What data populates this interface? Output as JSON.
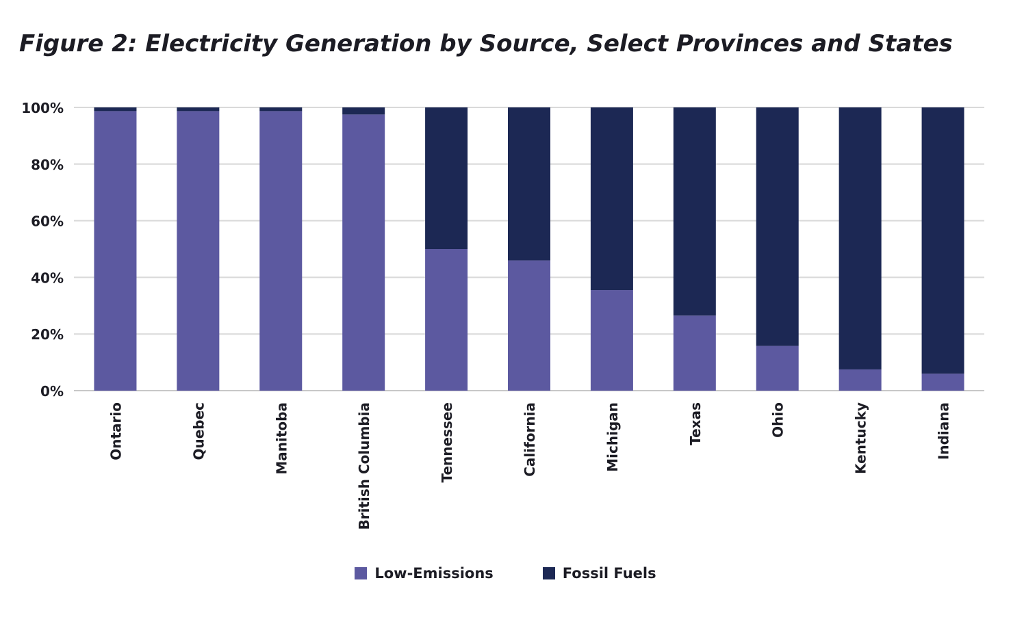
{
  "chart_data": {
    "type": "bar",
    "stacked": true,
    "title": "Figure 2: Electricity Generation by Source, Select Provinces and States",
    "xlabel": "",
    "ylabel": "",
    "ylim": [
      0,
      100
    ],
    "yticks": [
      0,
      20,
      40,
      60,
      80,
      100
    ],
    "ytick_labels": [
      "0%",
      "20%",
      "40%",
      "60%",
      "80%",
      "100%"
    ],
    "grid": true,
    "legend_position": "bottom",
    "categories": [
      "Ontario",
      "Quebec",
      "Manitoba",
      "British Columbia",
      "Tennessee",
      "California",
      "Michigan",
      "Texas",
      "Ohio",
      "Kentucky",
      "Indiana"
    ],
    "series": [
      {
        "name": "Low-Emissions",
        "color": "#5c59a0",
        "values": [
          98.7,
          98.7,
          98.7,
          97.5,
          50.0,
          46.0,
          35.5,
          26.5,
          15.8,
          7.5,
          6.0
        ]
      },
      {
        "name": "Fossil Fuels",
        "color": "#1c2854",
        "values": [
          1.3,
          1.3,
          1.3,
          2.5,
          50.0,
          54.0,
          64.5,
          73.5,
          84.2,
          92.5,
          94.0
        ]
      }
    ]
  },
  "colors": {
    "gridline": "#d9d9d9",
    "axis": "#c8c8c8",
    "text": "#1c1c24"
  }
}
